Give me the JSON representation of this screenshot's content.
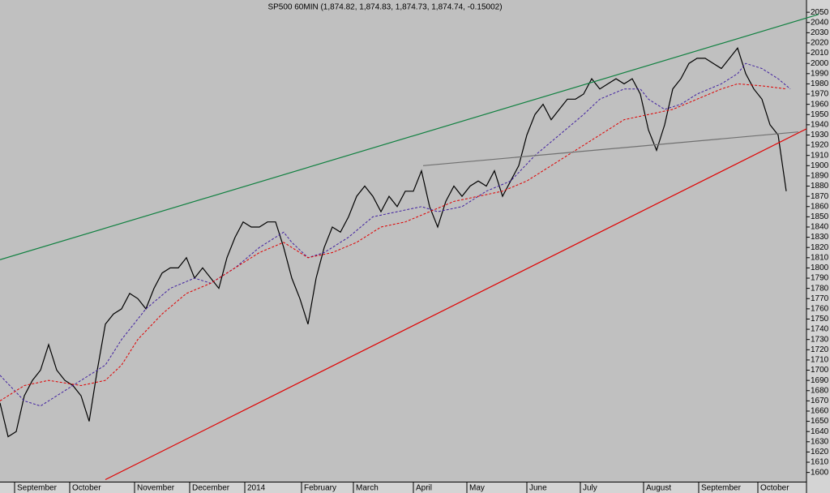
{
  "chart_data": {
    "type": "line",
    "title": "SP500 60MIN (1,874.82, 1,874.83, 1,874.73, 1,874.74, -0.15002)",
    "xlim": [
      0,
      99.5
    ],
    "ylim": [
      1591,
      2062
    ],
    "yticks": [
      1600,
      1610,
      1620,
      1630,
      1640,
      1650,
      1660,
      1670,
      1680,
      1690,
      1700,
      1710,
      1720,
      1730,
      1740,
      1750,
      1760,
      1770,
      1780,
      1790,
      1800,
      1810,
      1820,
      1830,
      1840,
      1850,
      1860,
      1870,
      1880,
      1890,
      1900,
      1910,
      1920,
      1930,
      1940,
      1950,
      1960,
      1970,
      1980,
      1990,
      2000,
      2010,
      2020,
      2030,
      2040,
      2050
    ],
    "xticks": [
      {
        "value": 1.8,
        "label": "September"
      },
      {
        "value": 8.6,
        "label": "October"
      },
      {
        "value": 16.6,
        "label": "November"
      },
      {
        "value": 23.4,
        "label": "December"
      },
      {
        "value": 30.2,
        "label": "2014"
      },
      {
        "value": 37.2,
        "label": "February"
      },
      {
        "value": 43.6,
        "label": "March"
      },
      {
        "value": 51.0,
        "label": "April"
      },
      {
        "value": 57.6,
        "label": "May"
      },
      {
        "value": 65.0,
        "label": "June"
      },
      {
        "value": 71.6,
        "label": "July"
      },
      {
        "value": 79.4,
        "label": "August"
      },
      {
        "value": 86.2,
        "label": "September"
      },
      {
        "value": 93.5,
        "label": "October"
      }
    ],
    "grid": false,
    "series": [
      {
        "color": "#000000",
        "values": [
          1668,
          1635,
          1640,
          1675,
          1690,
          1700,
          1725,
          1700,
          1690,
          1685,
          1675,
          1650,
          1700,
          1745,
          1755,
          1760,
          1775,
          1770,
          1760,
          1780,
          1795,
          1800,
          1800,
          1810,
          1790,
          1800,
          1790,
          1780,
          1810,
          1830,
          1845,
          1840,
          1840,
          1845,
          1845,
          1820,
          1790,
          1770,
          1745,
          1790,
          1820,
          1840,
          1835,
          1850,
          1870,
          1880,
          1870,
          1855,
          1870,
          1860,
          1875,
          1875,
          1895,
          1860,
          1840,
          1865,
          1880,
          1870,
          1880,
          1885,
          1880,
          1895,
          1870,
          1885,
          1900,
          1930,
          1950,
          1960,
          1945,
          1955,
          1965,
          1965,
          1970,
          1985,
          1975,
          1980,
          1985,
          1980,
          1985,
          1970,
          1935,
          1915,
          1940,
          1975,
          1985,
          2000,
          2005,
          2005,
          2000,
          1995,
          2005,
          2015,
          1990,
          1975,
          1965,
          1940,
          1930,
          1875
        ]
      },
      {
        "color": "#4020a0",
        "dash": true,
        "x": [
          0,
          3,
          5,
          8,
          10,
          13,
          15,
          18,
          21,
          24,
          26,
          29,
          32,
          35,
          36,
          38,
          40,
          43,
          46,
          49,
          52,
          54,
          57,
          60,
          63,
          66,
          69,
          72,
          74,
          77,
          79,
          80,
          82,
          84,
          86,
          89,
          91,
          92,
          94,
          96,
          97.5
        ],
        "values": [
          1695,
          1670,
          1665,
          1680,
          1690,
          1705,
          1730,
          1760,
          1780,
          1790,
          1785,
          1800,
          1820,
          1835,
          1825,
          1810,
          1815,
          1830,
          1850,
          1855,
          1860,
          1855,
          1860,
          1875,
          1885,
          1910,
          1930,
          1950,
          1965,
          1975,
          1975,
          1965,
          1955,
          1960,
          1970,
          1980,
          1990,
          2000,
          1995,
          1985,
          1975
        ]
      },
      {
        "color": "#e00000",
        "dash": true,
        "x": [
          0,
          3,
          6,
          10,
          13,
          15,
          17,
          20,
          23,
          26,
          29,
          32,
          35,
          38,
          41,
          44,
          47,
          50,
          53,
          56,
          59,
          62,
          65,
          68,
          71,
          74,
          77,
          80,
          83,
          86,
          89,
          91,
          94,
          97
        ],
        "values": [
          1670,
          1685,
          1690,
          1685,
          1690,
          1705,
          1730,
          1755,
          1775,
          1785,
          1800,
          1815,
          1825,
          1810,
          1815,
          1825,
          1840,
          1845,
          1855,
          1865,
          1870,
          1875,
          1885,
          1900,
          1915,
          1930,
          1945,
          1950,
          1955,
          1965,
          1975,
          1980,
          1978,
          1975
        ]
      },
      {
        "color": "#108040",
        "x": [
          0,
          101
        ],
        "values": [
          1808,
          2048
        ]
      },
      {
        "color": "#e00000",
        "x": [
          13,
          99.5
        ],
        "values": [
          1593,
          1936
        ]
      },
      {
        "color": "#707070",
        "x": [
          52.2,
          98.5
        ],
        "values": [
          1900,
          1933
        ]
      }
    ]
  }
}
